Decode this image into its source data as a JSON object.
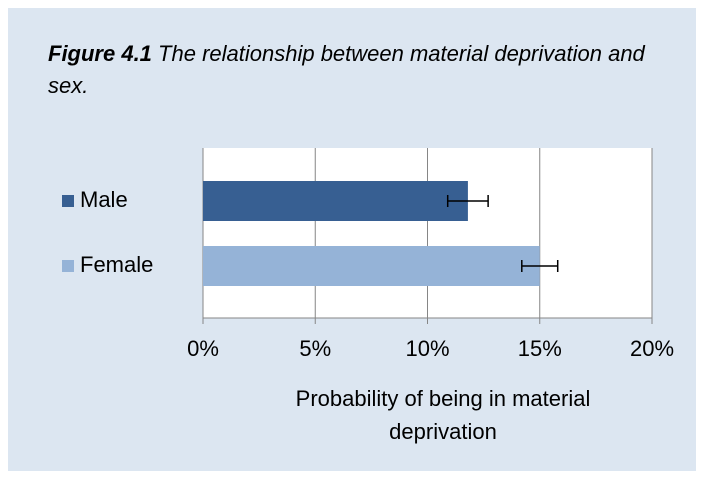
{
  "chart_data": {
    "type": "bar",
    "orientation": "horizontal",
    "figure_label": "Figure 4.1",
    "title": "The relationship between material deprivation and sex.",
    "categories": [
      "Male",
      "Female"
    ],
    "values": [
      11.8,
      15.0
    ],
    "errors": [
      0.9,
      0.8
    ],
    "colors": [
      "#375f92",
      "#95b3d7"
    ],
    "x_label": "Probability of being in material deprivation",
    "xlim": [
      0,
      20
    ],
    "xticks": [
      {
        "value": 0,
        "label": "0%"
      },
      {
        "value": 5,
        "label": "5%"
      },
      {
        "value": 10,
        "label": "10%"
      },
      {
        "value": 15,
        "label": "15%"
      },
      {
        "value": 20,
        "label": "20%"
      }
    ],
    "grid": true
  }
}
